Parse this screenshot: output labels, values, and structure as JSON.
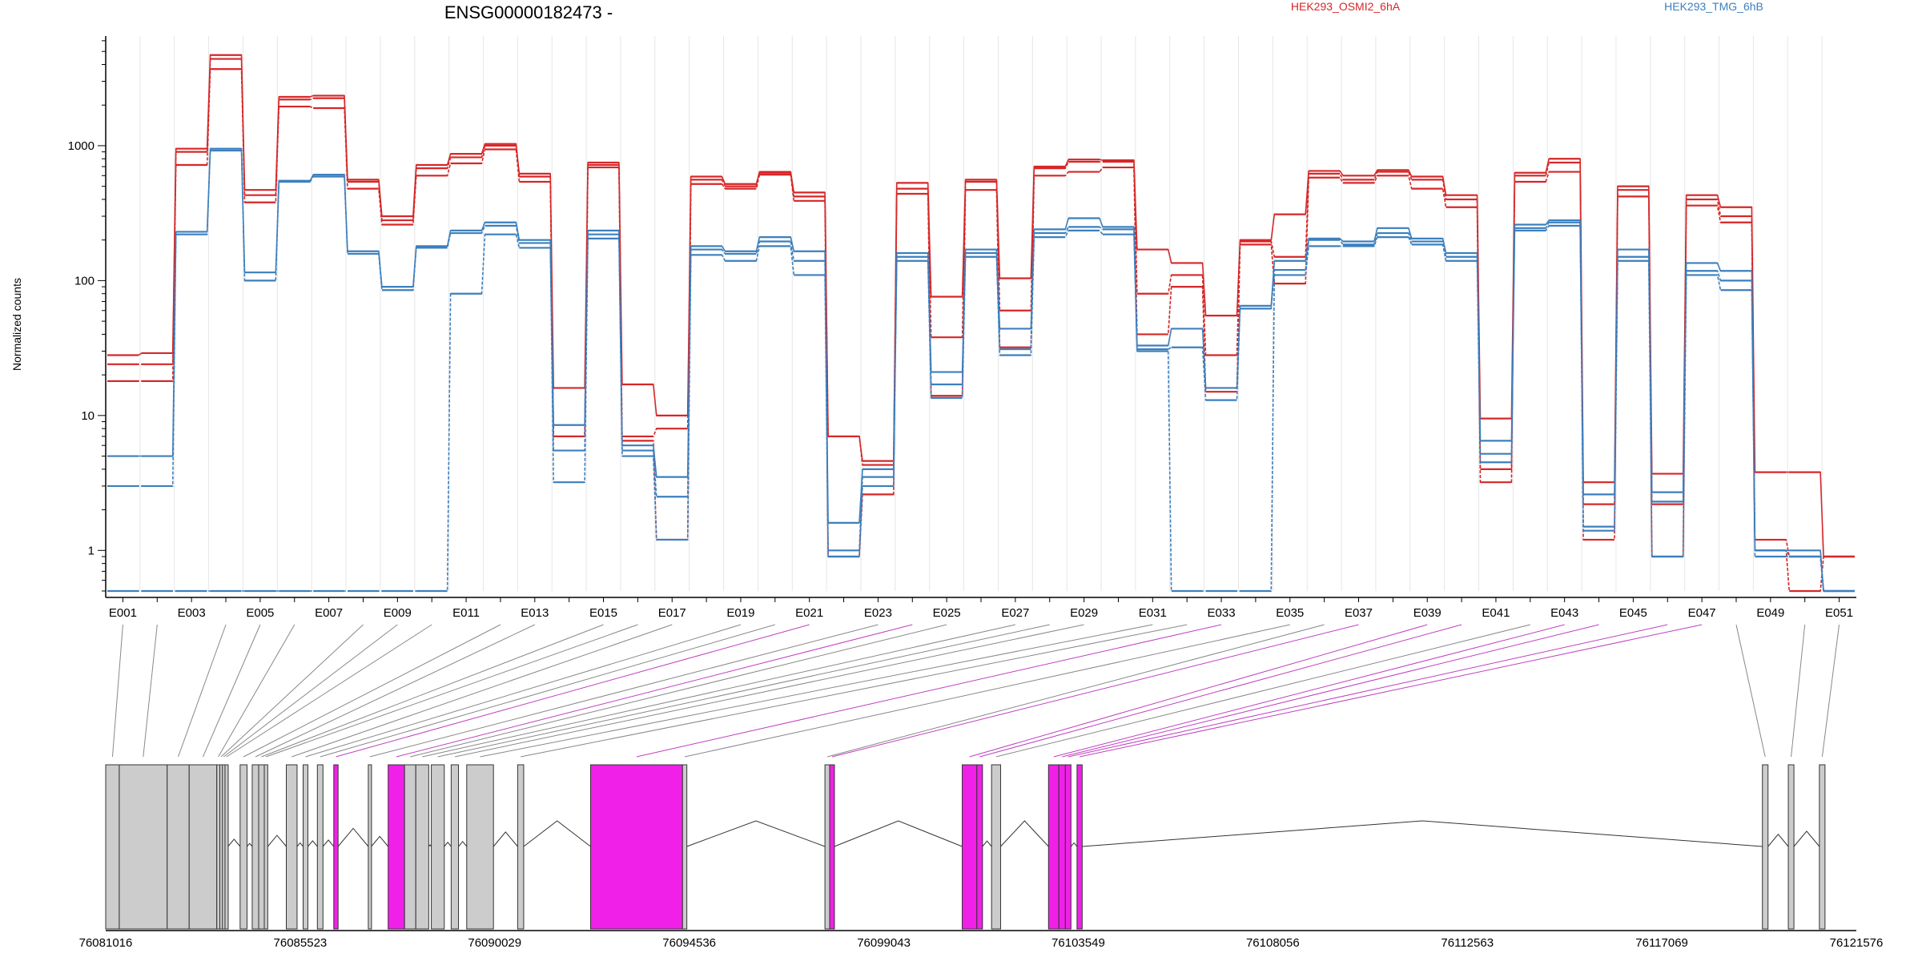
{
  "title": "ENSG00000182473 -",
  "legend": [
    {
      "name": "HEK293_OSMI2_6hA",
      "color": "#d62728"
    },
    {
      "name": "HEK293_TMG_6hB",
      "color": "#3c7fbd"
    }
  ],
  "chart_data": {
    "type": "line",
    "title": "ENSG00000182473 -",
    "ylabel": "Normalized counts",
    "yscale": "log",
    "ylim": [
      0.5,
      6500
    ],
    "yticks": [
      "1",
      "10",
      "100",
      "1000"
    ],
    "ytick_values": [
      1,
      10,
      100,
      1000
    ],
    "exon_labels": [
      "E001",
      "E003",
      "E005",
      "E007",
      "E009",
      "E011",
      "E013",
      "E015",
      "E017",
      "E019",
      "E021",
      "E023",
      "E025",
      "E027",
      "E029",
      "E031",
      "E033",
      "E035",
      "E037",
      "E039",
      "E041",
      "E043",
      "E045",
      "E047",
      "E049",
      "E051"
    ],
    "grid": "vertical",
    "series": [
      {
        "name": "HEK293_OSMI2_6hA",
        "color": "#d62728",
        "values": [
          28,
          29,
          950,
          4700,
          470,
          2300,
          2350,
          560,
          300,
          720,
          870,
          1030,
          620,
          16,
          750,
          17,
          10,
          590,
          520,
          640,
          450,
          7,
          4.6,
          530,
          76,
          560,
          104,
          700,
          790,
          780,
          170,
          135,
          55,
          200,
          310,
          650,
          600,
          660,
          590,
          430,
          9.5,
          630,
          800,
          3.2,
          500,
          3.7,
          430,
          350,
          3.8,
          3.8,
          0.9
        ]
      },
      {
        "name": "HEK293_OSMI2_6hA",
        "color": "#d62728",
        "values": [
          24,
          24,
          900,
          4400,
          430,
          2200,
          2250,
          540,
          280,
          680,
          820,
          1000,
          590,
          7,
          720,
          7,
          8,
          560,
          500,
          630,
          420,
          7,
          4.3,
          480,
          38,
          540,
          60,
          680,
          760,
          760,
          80,
          110,
          28,
          195,
          150,
          620,
          560,
          640,
          560,
          400,
          4,
          600,
          750,
          2.2,
          470,
          2.2,
          400,
          300,
          1.2,
          0.9,
          0.9
        ]
      },
      {
        "name": "HEK293_OSMI2_6hA",
        "color": "#d62728",
        "values": [
          18,
          18,
          720,
          3700,
          380,
          1950,
          1900,
          480,
          260,
          600,
          740,
          940,
          540,
          7,
          690,
          6.5,
          1.2,
          520,
          480,
          610,
          390,
          0.9,
          2.6,
          440,
          14,
          470,
          32,
          600,
          640,
          690,
          40,
          90,
          15,
          185,
          95,
          580,
          530,
          600,
          480,
          350,
          3.2,
          540,
          640,
          1.2,
          420,
          0.9,
          360,
          270,
          1,
          0.5,
          0.9
        ]
      },
      {
        "name": "HEK293_TMG_6hB",
        "color": "#3c7fbd",
        "values": [
          5,
          5,
          230,
          950,
          115,
          550,
          610,
          165,
          90,
          180,
          235,
          270,
          200,
          8.5,
          235,
          6,
          3.5,
          180,
          165,
          210,
          165,
          1.6,
          4,
          160,
          21,
          170,
          44,
          240,
          290,
          250,
          33,
          44,
          16,
          65,
          140,
          205,
          195,
          245,
          205,
          160,
          6.5,
          260,
          280,
          2.6,
          170,
          2.7,
          135,
          118,
          1,
          1,
          0.5
        ]
      },
      {
        "name": "HEK293_TMG_6hB",
        "color": "#3c7fbd",
        "values": [
          3,
          3,
          220,
          920,
          100,
          540,
          590,
          158,
          85,
          175,
          225,
          255,
          190,
          5.5,
          220,
          5.5,
          2.5,
          170,
          158,
          195,
          140,
          1,
          3.5,
          150,
          17,
          160,
          31,
          225,
          250,
          240,
          31,
          32,
          13,
          62,
          120,
          200,
          185,
          225,
          195,
          150,
          5.2,
          245,
          270,
          1.5,
          150,
          2.3,
          118,
          100,
          1,
          0.9,
          0.5
        ]
      },
      {
        "name": "HEK293_TMG_6hB",
        "color": "#3c7fbd",
        "values": [
          0.5,
          0.5,
          0.5,
          0.5,
          0.5,
          0.5,
          0.5,
          0.5,
          0.5,
          0.5,
          80,
          220,
          175,
          3.2,
          205,
          5,
          1.2,
          155,
          140,
          180,
          110,
          0.9,
          3,
          140,
          13.5,
          150,
          28,
          210,
          235,
          220,
          30,
          0.5,
          0.5,
          0.5,
          110,
          180,
          180,
          210,
          185,
          140,
          4.5,
          235,
          255,
          1.4,
          140,
          0.9,
          110,
          85,
          0.9,
          0.9,
          0.5
        ]
      }
    ],
    "genomic_axis": {
      "ticks": [
        "76081016",
        "76085523",
        "76090029",
        "76094536",
        "76099043",
        "76103549",
        "76108056",
        "76112563",
        "76117069",
        "76121576"
      ],
      "tick_values": [
        76081016,
        76085523,
        76090029,
        76094536,
        76099043,
        76103549,
        76108056,
        76112563,
        76117069,
        76121576
      ],
      "range": [
        76081016,
        76121576
      ],
      "exons": [
        {
          "start": 76081016,
          "end": 76081330,
          "highlight": false
        },
        {
          "start": 76081330,
          "end": 76082440,
          "highlight": false
        },
        {
          "start": 76082440,
          "end": 76082950,
          "highlight": false
        },
        {
          "start": 76082950,
          "end": 76083590,
          "highlight": false
        },
        {
          "start": 76083590,
          "end": 76083660,
          "highlight": false
        },
        {
          "start": 76083660,
          "end": 76083720,
          "highlight": false
        },
        {
          "start": 76083720,
          "end": 76083780,
          "highlight": false
        },
        {
          "start": 76083780,
          "end": 76083850,
          "highlight": false
        },
        {
          "start": 76084130,
          "end": 76084290,
          "highlight": false
        },
        {
          "start": 76084410,
          "end": 76084560,
          "highlight": false
        },
        {
          "start": 76084560,
          "end": 76084690,
          "highlight": false
        },
        {
          "start": 76084690,
          "end": 76084770,
          "highlight": false
        },
        {
          "start": 76085200,
          "end": 76085450,
          "highlight": false
        },
        {
          "start": 76085590,
          "end": 76085700,
          "highlight": false
        },
        {
          "start": 76085920,
          "end": 76086050,
          "highlight": false
        },
        {
          "start": 76086300,
          "end": 76086400,
          "highlight": true
        },
        {
          "start": 76087100,
          "end": 76087170,
          "highlight": false
        },
        {
          "start": 76087560,
          "end": 76087940,
          "highlight": true
        },
        {
          "start": 76087940,
          "end": 76088200,
          "highlight": false
        },
        {
          "start": 76088200,
          "end": 76088500,
          "highlight": false
        },
        {
          "start": 76088560,
          "end": 76088860,
          "highlight": false
        },
        {
          "start": 76089020,
          "end": 76089190,
          "highlight": false
        },
        {
          "start": 76089380,
          "end": 76090000,
          "highlight": false
        },
        {
          "start": 76090560,
          "end": 76090700,
          "highlight": false
        },
        {
          "start": 76092250,
          "end": 76094380,
          "highlight": true
        },
        {
          "start": 76094380,
          "end": 76094480,
          "highlight": false
        },
        {
          "start": 76097680,
          "end": 76097790,
          "highlight": false
        },
        {
          "start": 76097790,
          "end": 76097900,
          "highlight": true
        },
        {
          "start": 76100860,
          "end": 76101200,
          "highlight": true
        },
        {
          "start": 76101200,
          "end": 76101330,
          "highlight": true
        },
        {
          "start": 76101540,
          "end": 76101750,
          "highlight": false
        },
        {
          "start": 76102860,
          "end": 76103100,
          "highlight": true
        },
        {
          "start": 76103100,
          "end": 76103250,
          "highlight": true
        },
        {
          "start": 76103250,
          "end": 76103380,
          "highlight": true
        },
        {
          "start": 76103520,
          "end": 76103640,
          "highlight": true
        },
        {
          "start": 76119400,
          "end": 76119530,
          "highlight": false
        },
        {
          "start": 76120000,
          "end": 76120130,
          "highlight": false
        },
        {
          "start": 76120720,
          "end": 76120850,
          "highlight": false
        }
      ]
    }
  }
}
